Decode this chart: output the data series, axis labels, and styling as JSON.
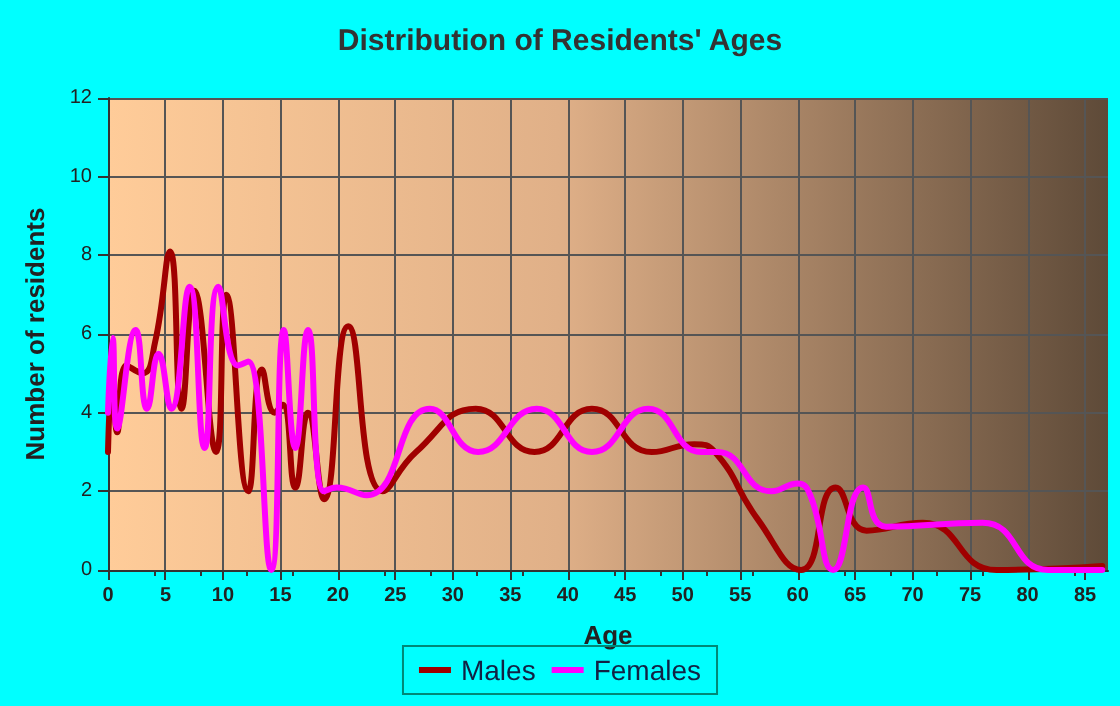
{
  "chart_data": {
    "type": "line",
    "title": "Distribution of Residents' Ages",
    "xlabel": "Age",
    "ylabel": "Number of residents",
    "xlim": [
      0,
      87
    ],
    "xticks": [
      0,
      5,
      10,
      15,
      20,
      25,
      30,
      35,
      40,
      45,
      50,
      55,
      60,
      65,
      70,
      75,
      80,
      85
    ],
    "ylim": [
      0,
      12
    ],
    "yticks": [
      0,
      2,
      4,
      6,
      8,
      10,
      12
    ],
    "grid": true,
    "legend": "bottom",
    "marker": "none",
    "line_style": "solid",
    "series": [
      {
        "name": "Males",
        "color": "#a00000",
        "x": [
          0,
          0.4,
          0.8,
          1.6,
          3,
          4.1,
          5.4,
          6.4,
          7.5,
          9.4,
          10.3,
          12.2,
          13.4,
          14.5,
          15.2,
          16.3,
          17.4,
          18.8,
          20.9,
          23.9,
          26.8,
          32,
          37.1,
          42.1,
          47.3,
          51,
          52.8,
          56.5,
          60.3,
          63.3,
          66,
          70.9,
          77.3,
          86.5
        ],
        "values": [
          3,
          5.1,
          3.5,
          5.2,
          5,
          5.8,
          8.1,
          4.1,
          7.1,
          3,
          7,
          2,
          5.1,
          4,
          4.2,
          2.1,
          4,
          1.8,
          6.2,
          2,
          3,
          4.1,
          3,
          4.1,
          3,
          3.2,
          3,
          1.3,
          0,
          2.1,
          1,
          1.2,
          0,
          0.1
        ]
      },
      {
        "name": "Females",
        "color": "#ff00ff",
        "x": [
          0,
          0.4,
          0.8,
          2.4,
          3.4,
          4.4,
          5.5,
          7.1,
          8.4,
          9.6,
          11.3,
          12.2,
          14.2,
          15.3,
          16.3,
          17.4,
          18.8,
          19.9,
          22.5,
          28,
          32.2,
          37.3,
          42.1,
          47,
          51.6,
          53,
          57.7,
          60,
          61.1,
          63.1,
          65.7,
          67.7,
          76.1,
          81.8,
          86.5
        ],
        "values": [
          4,
          5.9,
          3.6,
          6.1,
          4.1,
          5.5,
          4.1,
          7.2,
          3.1,
          7.2,
          5.2,
          5.3,
          0,
          6.1,
          3.1,
          6.1,
          2,
          2.1,
          1.9,
          4.1,
          3,
          4.1,
          3,
          4.1,
          3,
          3,
          2,
          2.2,
          1.9,
          0,
          2.1,
          1.1,
          1.2,
          0,
          0
        ]
      }
    ]
  }
}
